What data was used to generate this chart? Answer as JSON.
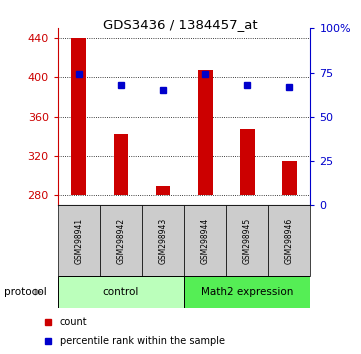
{
  "title": "GDS3436 / 1384457_at",
  "categories": [
    "GSM298941",
    "GSM298942",
    "GSM298943",
    "GSM298944",
    "GSM298945",
    "GSM298946"
  ],
  "bar_values": [
    440,
    343,
    290,
    408,
    348,
    315
  ],
  "percentile_pct": [
    74,
    68,
    65,
    74,
    68,
    67
  ],
  "bar_bottom": 280,
  "ylim_left": [
    270,
    450
  ],
  "ylim_right": [
    0,
    100
  ],
  "yticks_left": [
    280,
    320,
    360,
    400,
    440
  ],
  "yticks_right": [
    0,
    25,
    50,
    75,
    100
  ],
  "ytick_labels_right": [
    "0",
    "25",
    "50",
    "75",
    "100%"
  ],
  "bar_color": "#cc0000",
  "dot_color": "#0000cc",
  "bar_width": 0.35,
  "groups": [
    {
      "label": "control",
      "n": 3,
      "color": "#bbffbb"
    },
    {
      "label": "Math2 expression",
      "n": 3,
      "color": "#55ee55"
    }
  ],
  "protocol_label": "protocol",
  "legend_count_label": "count",
  "legend_pct_label": "percentile rank within the sample",
  "left_axis_color": "#cc0000",
  "right_axis_color": "#0000cc"
}
